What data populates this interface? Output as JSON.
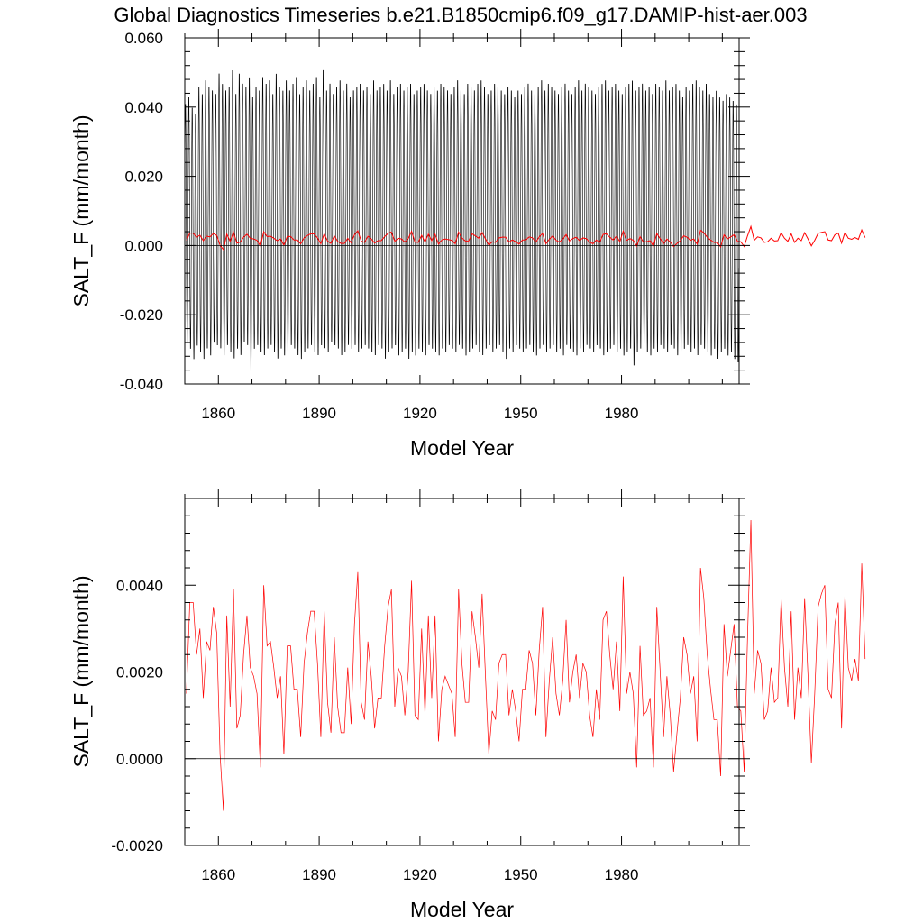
{
  "title": "Global Diagnostics Timeseries b.e21.B1850cmip6.f09_g17.DAMIP-hist-aer.003",
  "colors": {
    "monthly": "#000000",
    "annual": "#ff0000",
    "zero_line": "#000000"
  },
  "chart_data": [
    {
      "type": "line",
      "xlabel": "Model Year",
      "ylabel": "SALT_F (mm/month)",
      "xlim": [
        1850,
        2015
      ],
      "ylim": [
        -0.04,
        0.06
      ],
      "x_ticks": [
        1860,
        1890,
        1920,
        1950,
        1980
      ],
      "x_tick_labels": [
        "1860",
        "1890",
        "1920",
        "1950",
        "1980"
      ],
      "y_ticks": [
        -0.04,
        -0.02,
        0.0,
        0.02,
        0.04,
        0.06
      ],
      "y_tick_labels": [
        "-0.040",
        "-0.020",
        "0.000",
        "0.020",
        "0.040",
        "0.060"
      ],
      "zero_line": 0,
      "grid": false,
      "legend": false,
      "series": [
        {
          "color": "#000000",
          "kind": "monthly",
          "seasonal_range": [
            -0.033,
            0.045
          ],
          "annual_peaks": [
            0.042,
            0.044,
            0.041,
            0.039,
            0.047,
            0.045,
            0.049,
            0.047,
            0.046,
            0.045,
            0.051,
            0.048,
            0.046,
            0.047,
            0.052,
            0.045,
            0.051,
            0.048,
            0.047,
            0.05,
            0.044,
            0.047,
            0.046,
            0.05,
            0.048,
            0.049,
            0.045,
            0.051,
            0.047,
            0.046,
            0.049,
            0.046,
            0.048,
            0.05,
            0.045,
            0.047,
            0.049,
            0.046,
            0.048,
            0.05,
            0.044,
            0.052,
            0.046,
            0.048,
            0.045,
            0.047,
            0.049,
            0.046,
            0.048,
            0.044,
            0.046,
            0.047,
            0.048,
            0.046,
            0.047,
            0.045,
            0.049,
            0.046,
            0.047,
            0.048,
            0.046,
            0.049,
            0.045,
            0.047,
            0.048,
            0.046,
            0.047,
            0.048,
            0.045,
            0.046,
            0.047,
            0.048,
            0.046,
            0.045,
            0.047,
            0.046,
            0.048,
            0.047,
            0.046,
            0.045,
            0.047,
            0.049,
            0.046,
            0.045,
            0.048,
            0.047,
            0.046,
            0.048,
            0.049,
            0.047,
            0.045,
            0.046,
            0.048,
            0.047,
            0.046,
            0.045,
            0.047,
            0.046,
            0.044,
            0.046,
            0.045,
            0.047,
            0.048,
            0.046,
            0.045,
            0.047,
            0.049,
            0.046,
            0.048,
            0.047,
            0.046,
            0.045,
            0.047,
            0.048,
            0.046,
            0.045,
            0.047,
            0.049,
            0.046,
            0.048,
            0.047,
            0.046,
            0.045,
            0.047,
            0.048,
            0.049,
            0.046,
            0.047,
            0.048,
            0.046,
            0.045,
            0.047,
            0.048,
            0.049,
            0.046,
            0.047,
            0.048,
            0.046,
            0.047,
            0.045,
            0.048,
            0.047,
            0.046,
            0.049,
            0.046,
            0.047,
            0.048,
            0.046,
            0.044,
            0.047,
            0.046,
            0.048,
            0.049,
            0.047,
            0.046,
            0.048,
            0.045,
            0.044,
            0.046,
            0.044,
            0.043,
            0.045,
            0.044,
            0.043,
            0.042
          ],
          "annual_troughs": [
            -0.029,
            -0.031,
            -0.034,
            -0.03,
            -0.032,
            -0.034,
            -0.031,
            -0.033,
            -0.029,
            -0.03,
            -0.031,
            -0.033,
            -0.03,
            -0.032,
            -0.034,
            -0.031,
            -0.033,
            -0.029,
            -0.03,
            -0.038,
            -0.031,
            -0.03,
            -0.032,
            -0.033,
            -0.031,
            -0.03,
            -0.032,
            -0.034,
            -0.031,
            -0.033,
            -0.032,
            -0.03,
            -0.031,
            -0.033,
            -0.034,
            -0.032,
            -0.031,
            -0.03,
            -0.032,
            -0.033,
            -0.03,
            -0.031,
            -0.032,
            -0.029,
            -0.03,
            -0.031,
            -0.033,
            -0.032,
            -0.03,
            -0.031,
            -0.03,
            -0.032,
            -0.031,
            -0.03,
            -0.031,
            -0.032,
            -0.033,
            -0.03,
            -0.031,
            -0.034,
            -0.032,
            -0.031,
            -0.03,
            -0.033,
            -0.032,
            -0.031,
            -0.034,
            -0.032,
            -0.033,
            -0.031,
            -0.032,
            -0.033,
            -0.03,
            -0.031,
            -0.032,
            -0.033,
            -0.031,
            -0.032,
            -0.03,
            -0.031,
            -0.032,
            -0.03,
            -0.031,
            -0.033,
            -0.032,
            -0.031,
            -0.03,
            -0.032,
            -0.033,
            -0.031,
            -0.03,
            -0.032,
            -0.031,
            -0.03,
            -0.032,
            -0.034,
            -0.031,
            -0.032,
            -0.03,
            -0.031,
            -0.032,
            -0.031,
            -0.03,
            -0.032,
            -0.033,
            -0.031,
            -0.03,
            -0.032,
            -0.031,
            -0.03,
            -0.032,
            -0.031,
            -0.033,
            -0.03,
            -0.031,
            -0.032,
            -0.033,
            -0.031,
            -0.032,
            -0.03,
            -0.031,
            -0.032,
            -0.03,
            -0.031,
            -0.033,
            -0.032,
            -0.031,
            -0.03,
            -0.032,
            -0.031,
            -0.033,
            -0.032,
            -0.031,
            -0.036,
            -0.032,
            -0.031,
            -0.03,
            -0.032,
            -0.033,
            -0.031,
            -0.032,
            -0.03,
            -0.031,
            -0.032,
            -0.03,
            -0.031,
            -0.033,
            -0.032,
            -0.031,
            -0.03,
            -0.032,
            -0.031,
            -0.033,
            -0.03,
            -0.031,
            -0.032,
            -0.033,
            -0.031,
            -0.034,
            -0.032,
            -0.031,
            -0.033,
            -0.032,
            -0.034,
            -0.035
          ]
        },
        {
          "color": "#ff0000",
          "kind": "annual_mean",
          "ref": "annual"
        }
      ]
    },
    {
      "type": "line",
      "xlabel": "Model Year",
      "ylabel": "SALT_F (mm/month)",
      "xlim": [
        1850,
        2015
      ],
      "ylim": [
        -0.002,
        0.006
      ],
      "x_ticks": [
        1860,
        1890,
        1920,
        1950,
        1980
      ],
      "x_tick_labels": [
        "1860",
        "1890",
        "1920",
        "1950",
        "1980"
      ],
      "y_ticks": [
        -0.002,
        0.0,
        0.002,
        0.004
      ],
      "y_tick_labels": [
        "-0.0020",
        "0.0000",
        "0.0020",
        "0.0040"
      ],
      "zero_line": 0,
      "grid": false,
      "legend": false,
      "series": [
        {
          "color": "#ff0000",
          "kind": "annual_mean",
          "x_start": 1850,
          "x_step": 1,
          "values": [
            0.0015,
            0.0036,
            0.0036,
            0.0024,
            0.003,
            0.0014,
            0.0027,
            0.0025,
            0.0035,
            0.0029,
            0.0001,
            -0.0012,
            0.0033,
            0.0012,
            0.0039,
            0.0007,
            0.001,
            0.0024,
            0.0033,
            0.0021,
            0.0019,
            0.0015,
            -0.0002,
            0.004,
            0.0026,
            0.0027,
            0.0021,
            0.0014,
            0.0019,
            0.0001,
            0.0026,
            0.0026,
            0.0016,
            0.0016,
            0.0005,
            0.0022,
            0.0029,
            0.0034,
            0.0034,
            0.0022,
            0.0005,
            0.0034,
            0.0013,
            0.0006,
            0.0028,
            0.0012,
            0.0006,
            0.0006,
            0.0021,
            0.0008,
            0.0031,
            0.0043,
            0.0013,
            0.0009,
            0.0027,
            0.0019,
            0.0007,
            0.0014,
            0.0014,
            0.0026,
            0.0035,
            0.0039,
            0.0012,
            0.0021,
            0.0019,
            0.001,
            0.002,
            0.0041,
            0.001,
            0.0009,
            0.003,
            0.001,
            0.0033,
            0.0014,
            0.0033,
            0.0004,
            0.0016,
            0.0019,
            0.0017,
            0.0015,
            0.0005,
            0.0039,
            0.0022,
            0.0013,
            0.0013,
            0.0034,
            0.0028,
            0.0021,
            0.0038,
            0.0019,
            0.0001,
            0.0011,
            0.0009,
            0.0022,
            0.0024,
            0.0024,
            0.001,
            0.0016,
            0.0011,
            0.0004,
            0.0016,
            0.0016,
            0.0025,
            0.0022,
            0.001,
            0.0025,
            0.0035,
            0.0005,
            0.0018,
            0.0028,
            0.0015,
            0.001,
            0.0018,
            0.0032,
            0.0013,
            0.002,
            0.0024,
            0.0014,
            0.0022,
            0.002,
            0.001,
            0.0005,
            0.0016,
            0.0009,
            0.0032,
            0.0034,
            0.0024,
            0.0016,
            0.0027,
            0.0011,
            0.0042,
            0.0015,
            0.002,
            0.0015,
            -0.0002,
            0.0026,
            0.001,
            0.0011,
            0.0014,
            -0.0002,
            0.0035,
            0.002,
            0.0005,
            0.0019,
            0.001,
            -0.0003,
            0.0006,
            0.0014,
            0.0028,
            0.0024,
            0.0015,
            0.0019,
            0.0004,
            0.0044,
            0.0037,
            0.0024,
            0.0016,
            0.0009,
            0.0009,
            -0.0004,
            0.0031,
            0.0019,
            0.0025,
            0.0031,
            0.0012,
            0.0011,
            -0.0003,
            0.0028,
            0.0055,
            0.0015,
            0.0025,
            0.0022,
            0.0009,
            0.0011,
            0.0021,
            0.0013,
            0.0014,
            0.0037,
            0.0021,
            0.0012,
            0.0034,
            0.0009,
            0.0021,
            0.0014,
            0.0037,
            0.0019,
            -0.0001,
            0.0015,
            0.0035,
            0.0038,
            0.004,
            0.0016,
            0.0014,
            0.0031,
            0.0036,
            0.0007,
            0.0038,
            0.0021,
            0.0018,
            0.0023,
            0.0018,
            0.0045,
            0.0023
          ]
        }
      ]
    }
  ]
}
